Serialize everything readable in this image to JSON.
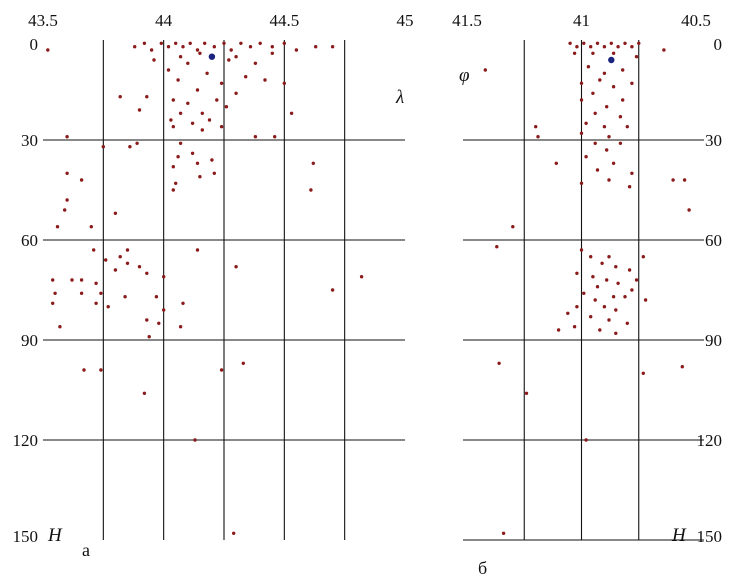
{
  "chart_data": [
    {
      "type": "scatter",
      "panel_label": "а",
      "x_axis_symbol": "λ",
      "y_axis_symbol": "H",
      "xlim": [
        43.5,
        45.0
      ],
      "ylim": [
        0,
        150
      ],
      "x_ticks": [
        "43.5",
        "44",
        "44.5",
        "45"
      ],
      "y_ticks": [
        "0",
        "30",
        "60",
        "90",
        "120",
        "150"
      ],
      "x_tick_values": [
        43.5,
        44.0,
        44.5,
        45.0
      ],
      "y_tick_values": [
        0,
        30,
        60,
        90,
        120,
        150
      ],
      "point_color": "#8b1a1a",
      "highlight_color": "#1a237e",
      "highlight": [
        {
          "x": 44.2,
          "y": 5
        }
      ],
      "points": [
        {
          "x": 43.52,
          "y": 3
        },
        {
          "x": 43.88,
          "y": 2
        },
        {
          "x": 43.92,
          "y": 1
        },
        {
          "x": 43.95,
          "y": 3
        },
        {
          "x": 43.99,
          "y": 1
        },
        {
          "x": 44.02,
          "y": 2
        },
        {
          "x": 44.05,
          "y": 1
        },
        {
          "x": 44.08,
          "y": 2
        },
        {
          "x": 44.11,
          "y": 1
        },
        {
          "x": 44.14,
          "y": 3
        },
        {
          "x": 44.17,
          "y": 1
        },
        {
          "x": 44.21,
          "y": 2
        },
        {
          "x": 44.25,
          "y": 1
        },
        {
          "x": 44.28,
          "y": 3
        },
        {
          "x": 44.32,
          "y": 1
        },
        {
          "x": 44.36,
          "y": 2
        },
        {
          "x": 44.4,
          "y": 1
        },
        {
          "x": 44.45,
          "y": 2
        },
        {
          "x": 44.5,
          "y": 1
        },
        {
          "x": 44.55,
          "y": 3
        },
        {
          "x": 44.63,
          "y": 2
        },
        {
          "x": 44.7,
          "y": 2
        },
        {
          "x": 44.07,
          "y": 5
        },
        {
          "x": 44.15,
          "y": 4
        },
        {
          "x": 44.3,
          "y": 5
        },
        {
          "x": 44.45,
          "y": 4
        },
        {
          "x": 43.96,
          "y": 6
        },
        {
          "x": 44.1,
          "y": 7
        },
        {
          "x": 44.27,
          "y": 6
        },
        {
          "x": 44.38,
          "y": 7
        },
        {
          "x": 44.02,
          "y": 9
        },
        {
          "x": 44.18,
          "y": 10
        },
        {
          "x": 44.34,
          "y": 11
        },
        {
          "x": 44.42,
          "y": 12
        },
        {
          "x": 44.06,
          "y": 12
        },
        {
          "x": 44.24,
          "y": 13
        },
        {
          "x": 44.5,
          "y": 13
        },
        {
          "x": 44.14,
          "y": 15
        },
        {
          "x": 44.3,
          "y": 16
        },
        {
          "x": 43.93,
          "y": 17
        },
        {
          "x": 44.04,
          "y": 18
        },
        {
          "x": 44.22,
          "y": 18
        },
        {
          "x": 43.82,
          "y": 17
        },
        {
          "x": 44.1,
          "y": 19
        },
        {
          "x": 44.26,
          "y": 20
        },
        {
          "x": 43.9,
          "y": 21
        },
        {
          "x": 44.07,
          "y": 22
        },
        {
          "x": 44.16,
          "y": 22
        },
        {
          "x": 44.53,
          "y": 22
        },
        {
          "x": 44.03,
          "y": 24
        },
        {
          "x": 44.19,
          "y": 24
        },
        {
          "x": 44.12,
          "y": 25
        },
        {
          "x": 44.04,
          "y": 26
        },
        {
          "x": 44.24,
          "y": 26
        },
        {
          "x": 44.16,
          "y": 27
        },
        {
          "x": 44.38,
          "y": 29
        },
        {
          "x": 44.46,
          "y": 29
        },
        {
          "x": 44.07,
          "y": 31
        },
        {
          "x": 43.89,
          "y": 31
        },
        {
          "x": 43.6,
          "y": 29
        },
        {
          "x": 43.75,
          "y": 32
        },
        {
          "x": 43.86,
          "y": 32
        },
        {
          "x": 44.12,
          "y": 34
        },
        {
          "x": 44.06,
          "y": 35
        },
        {
          "x": 44.14,
          "y": 37
        },
        {
          "x": 44.2,
          "y": 36
        },
        {
          "x": 44.04,
          "y": 38
        },
        {
          "x": 44.15,
          "y": 41
        },
        {
          "x": 44.21,
          "y": 40
        },
        {
          "x": 44.62,
          "y": 37
        },
        {
          "x": 43.6,
          "y": 40
        },
        {
          "x": 43.66,
          "y": 42
        },
        {
          "x": 44.05,
          "y": 43
        },
        {
          "x": 44.04,
          "y": 45
        },
        {
          "x": 44.61,
          "y": 45
        },
        {
          "x": 43.6,
          "y": 48
        },
        {
          "x": 43.59,
          "y": 51
        },
        {
          "x": 43.8,
          "y": 52
        },
        {
          "x": 43.56,
          "y": 56
        },
        {
          "x": 43.7,
          "y": 56
        },
        {
          "x": 43.71,
          "y": 63
        },
        {
          "x": 43.85,
          "y": 63
        },
        {
          "x": 44.14,
          "y": 63
        },
        {
          "x": 43.82,
          "y": 65
        },
        {
          "x": 43.76,
          "y": 66
        },
        {
          "x": 43.85,
          "y": 67
        },
        {
          "x": 43.9,
          "y": 68
        },
        {
          "x": 44.3,
          "y": 68
        },
        {
          "x": 43.8,
          "y": 69
        },
        {
          "x": 43.93,
          "y": 70
        },
        {
          "x": 44.0,
          "y": 71
        },
        {
          "x": 43.62,
          "y": 72
        },
        {
          "x": 43.66,
          "y": 72
        },
        {
          "x": 43.54,
          "y": 72
        },
        {
          "x": 44.82,
          "y": 71
        },
        {
          "x": 43.72,
          "y": 73
        },
        {
          "x": 43.55,
          "y": 76
        },
        {
          "x": 43.66,
          "y": 76
        },
        {
          "x": 43.74,
          "y": 76
        },
        {
          "x": 43.84,
          "y": 77
        },
        {
          "x": 43.97,
          "y": 77
        },
        {
          "x": 44.7,
          "y": 75
        },
        {
          "x": 43.54,
          "y": 79
        },
        {
          "x": 43.72,
          "y": 79
        },
        {
          "x": 43.77,
          "y": 80
        },
        {
          "x": 44.08,
          "y": 79
        },
        {
          "x": 44.0,
          "y": 81
        },
        {
          "x": 43.93,
          "y": 84
        },
        {
          "x": 43.98,
          "y": 85
        },
        {
          "x": 44.07,
          "y": 86
        },
        {
          "x": 43.57,
          "y": 86
        },
        {
          "x": 43.94,
          "y": 89
        },
        {
          "x": 43.67,
          "y": 99
        },
        {
          "x": 43.74,
          "y": 99
        },
        {
          "x": 44.24,
          "y": 99
        },
        {
          "x": 44.33,
          "y": 97
        },
        {
          "x": 43.92,
          "y": 106
        },
        {
          "x": 44.13,
          "y": 120
        },
        {
          "x": 44.29,
          "y": 148
        }
      ]
    },
    {
      "type": "scatter",
      "panel_label": "б",
      "x_axis_symbol": "φ",
      "y_axis_symbol": "H",
      "xlim": [
        41.5,
        40.5
      ],
      "ylim": [
        0,
        150
      ],
      "x_ticks": [
        "41.5",
        "41",
        "40.5"
      ],
      "y_ticks": [
        "0",
        "30",
        "60",
        "90",
        "120",
        "150"
      ],
      "x_tick_values": [
        41.5,
        41.0,
        40.5
      ],
      "y_tick_values": [
        0,
        30,
        60,
        90,
        120,
        150
      ],
      "point_color": "#8b1a1a",
      "highlight_color": "#1a237e",
      "highlight": [
        {
          "x": 40.87,
          "y": 6
        }
      ],
      "points": [
        {
          "x": 41.05,
          "y": 1
        },
        {
          "x": 41.02,
          "y": 2
        },
        {
          "x": 40.99,
          "y": 1
        },
        {
          "x": 40.96,
          "y": 2
        },
        {
          "x": 40.93,
          "y": 1
        },
        {
          "x": 40.9,
          "y": 2
        },
        {
          "x": 40.87,
          "y": 1
        },
        {
          "x": 40.84,
          "y": 2
        },
        {
          "x": 40.81,
          "y": 1
        },
        {
          "x": 40.78,
          "y": 2
        },
        {
          "x": 40.75,
          "y": 1
        },
        {
          "x": 41.03,
          "y": 4
        },
        {
          "x": 40.95,
          "y": 4
        },
        {
          "x": 40.86,
          "y": 4
        },
        {
          "x": 40.76,
          "y": 5
        },
        {
          "x": 40.64,
          "y": 3
        },
        {
          "x": 41.42,
          "y": 9
        },
        {
          "x": 40.97,
          "y": 8
        },
        {
          "x": 40.9,
          "y": 10
        },
        {
          "x": 40.82,
          "y": 9
        },
        {
          "x": 40.92,
          "y": 12
        },
        {
          "x": 41.0,
          "y": 13
        },
        {
          "x": 40.86,
          "y": 14
        },
        {
          "x": 40.78,
          "y": 13
        },
        {
          "x": 40.95,
          "y": 16
        },
        {
          "x": 40.82,
          "y": 18
        },
        {
          "x": 41.0,
          "y": 18
        },
        {
          "x": 40.89,
          "y": 20
        },
        {
          "x": 40.94,
          "y": 22
        },
        {
          "x": 40.83,
          "y": 23
        },
        {
          "x": 40.98,
          "y": 25
        },
        {
          "x": 40.9,
          "y": 26
        },
        {
          "x": 40.8,
          "y": 26
        },
        {
          "x": 41.0,
          "y": 28
        },
        {
          "x": 41.2,
          "y": 26
        },
        {
          "x": 40.88,
          "y": 29
        },
        {
          "x": 41.19,
          "y": 29
        },
        {
          "x": 40.94,
          "y": 31
        },
        {
          "x": 40.83,
          "y": 31
        },
        {
          "x": 40.89,
          "y": 33
        },
        {
          "x": 40.98,
          "y": 35
        },
        {
          "x": 41.11,
          "y": 37
        },
        {
          "x": 40.86,
          "y": 37
        },
        {
          "x": 40.93,
          "y": 39
        },
        {
          "x": 40.78,
          "y": 40
        },
        {
          "x": 41.0,
          "y": 43
        },
        {
          "x": 40.88,
          "y": 42
        },
        {
          "x": 40.6,
          "y": 42
        },
        {
          "x": 40.55,
          "y": 42
        },
        {
          "x": 40.79,
          "y": 44
        },
        {
          "x": 40.53,
          "y": 51
        },
        {
          "x": 41.3,
          "y": 56
        },
        {
          "x": 41.37,
          "y": 62
        },
        {
          "x": 41.0,
          "y": 63
        },
        {
          "x": 40.96,
          "y": 65
        },
        {
          "x": 40.88,
          "y": 65
        },
        {
          "x": 40.73,
          "y": 65
        },
        {
          "x": 40.91,
          "y": 67
        },
        {
          "x": 40.85,
          "y": 68
        },
        {
          "x": 40.79,
          "y": 69
        },
        {
          "x": 41.02,
          "y": 70
        },
        {
          "x": 40.95,
          "y": 71
        },
        {
          "x": 40.89,
          "y": 72
        },
        {
          "x": 40.76,
          "y": 72
        },
        {
          "x": 40.84,
          "y": 73
        },
        {
          "x": 40.93,
          "y": 74
        },
        {
          "x": 40.78,
          "y": 75
        },
        {
          "x": 40.99,
          "y": 76
        },
        {
          "x": 40.86,
          "y": 77
        },
        {
          "x": 40.81,
          "y": 77
        },
        {
          "x": 40.94,
          "y": 78
        },
        {
          "x": 40.72,
          "y": 78
        },
        {
          "x": 40.9,
          "y": 80
        },
        {
          "x": 41.02,
          "y": 80
        },
        {
          "x": 40.85,
          "y": 81
        },
        {
          "x": 41.06,
          "y": 82
        },
        {
          "x": 40.96,
          "y": 83
        },
        {
          "x": 40.88,
          "y": 84
        },
        {
          "x": 40.8,
          "y": 85
        },
        {
          "x": 41.03,
          "y": 86
        },
        {
          "x": 40.92,
          "y": 87
        },
        {
          "x": 41.1,
          "y": 87
        },
        {
          "x": 40.85,
          "y": 88
        },
        {
          "x": 41.36,
          "y": 97
        },
        {
          "x": 40.73,
          "y": 100
        },
        {
          "x": 40.56,
          "y": 98
        },
        {
          "x": 41.24,
          "y": 106
        },
        {
          "x": 40.98,
          "y": 120
        },
        {
          "x": 41.34,
          "y": 148
        }
      ]
    }
  ]
}
